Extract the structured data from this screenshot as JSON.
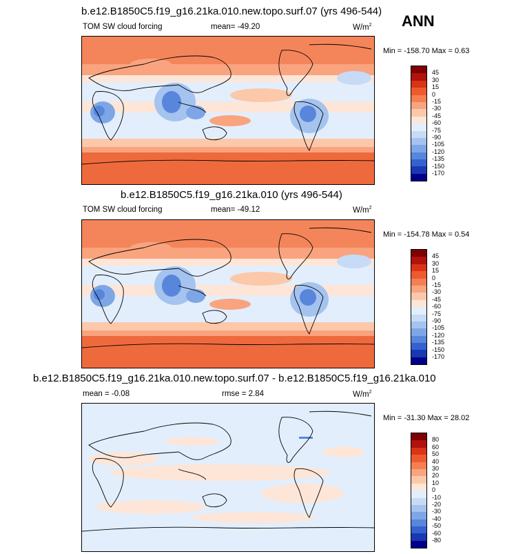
{
  "annual_label": "ANN",
  "panels": [
    {
      "title": "b.e12.B1850C5.f19_g16.21ka.010.new.topo.surf.07 (yrs 496-544)",
      "variable": "TOM SW cloud forcing",
      "mean": "mean= -49.20",
      "rmse": "",
      "units": "W/m",
      "units_sup": "2",
      "minmax": "Min = -158.70 Max =   0.63",
      "colorbar": {
        "labels": [
          "45",
          "30",
          "15",
          "0",
          "-15",
          "-30",
          "-45",
          "-60",
          "-75",
          "-90",
          "-105",
          "-120",
          "-135",
          "-150",
          "-170"
        ],
        "colors": [
          "#7f0000",
          "#b0120c",
          "#d93417",
          "#ee5a2e",
          "#f47f53",
          "#f9a47f",
          "#fcc8aa",
          "#fde6d7",
          "#e3eefc",
          "#c7dbf7",
          "#a4c3ef",
          "#7ea6e6",
          "#5886db",
          "#3461cf",
          "#1838b4",
          "#00008b"
        ]
      }
    },
    {
      "title": "b.e12.B1850C5.f19_g16.21ka.010 (yrs 496-544)",
      "variable": "TOM SW cloud forcing",
      "mean": "mean= -49.12",
      "rmse": "",
      "units": "W/m",
      "units_sup": "2",
      "minmax": "Min = -154.78 Max =   0.54",
      "colorbar": {
        "labels": [
          "45",
          "30",
          "15",
          "0",
          "-15",
          "-30",
          "-45",
          "-60",
          "-75",
          "-90",
          "-105",
          "-120",
          "-135",
          "-150",
          "-170"
        ],
        "colors": [
          "#7f0000",
          "#b0120c",
          "#d93417",
          "#ee5a2e",
          "#f47f53",
          "#f9a47f",
          "#fcc8aa",
          "#fde6d7",
          "#e3eefc",
          "#c7dbf7",
          "#a4c3ef",
          "#7ea6e6",
          "#5886db",
          "#3461cf",
          "#1838b4",
          "#00008b"
        ]
      }
    },
    {
      "title": "b.e12.B1850C5.f19_g16.21ka.010.new.topo.surf.07 - b.e12.B1850C5.f19_g16.21ka.010",
      "variable": "",
      "mean": "mean =  -0.08",
      "rmse": "rmse =   2.84",
      "units": "W/m",
      "units_sup": "2",
      "minmax": "Min = -31.30 Max = 28.02",
      "colorbar": {
        "labels": [
          "80",
          "60",
          "50",
          "40",
          "30",
          "20",
          "10",
          "0",
          "-10",
          "-20",
          "-30",
          "-40",
          "-50",
          "-60",
          "-80"
        ],
        "colors": [
          "#7f0000",
          "#b0120c",
          "#d93417",
          "#ee5a2e",
          "#f47f53",
          "#f9a47f",
          "#fcc8aa",
          "#fde6d7",
          "#e3eefc",
          "#c7dbf7",
          "#a4c3ef",
          "#7ea6e6",
          "#5886db",
          "#3461cf",
          "#1838b4",
          "#00008b"
        ]
      }
    }
  ]
}
